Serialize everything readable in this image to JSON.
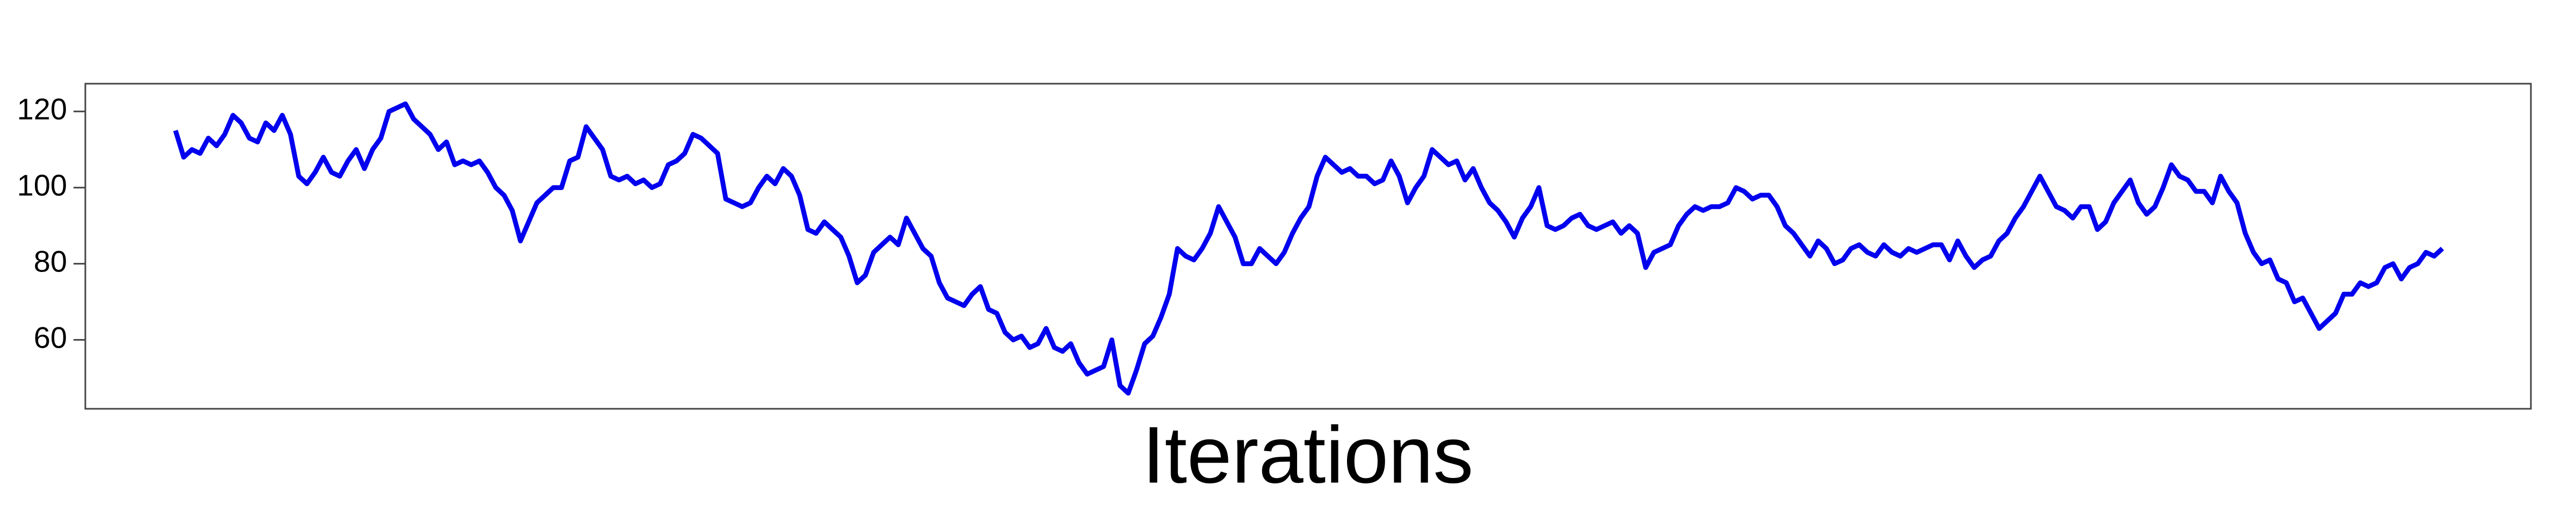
{
  "chart_data": {
    "type": "line",
    "x_label": "Iterations",
    "color": "#0000ee",
    "ylim": [
      41.9,
      127.3
    ],
    "yticks": [
      60,
      80,
      100,
      120
    ],
    "values": [
      115,
      108,
      110,
      109,
      113,
      111,
      114,
      119,
      117,
      113,
      112,
      117,
      115,
      119,
      114,
      103,
      101,
      104,
      108,
      104,
      103,
      107,
      110,
      105,
      110,
      113,
      120,
      121,
      122,
      118,
      116,
      114,
      110,
      112,
      106,
      107,
      106,
      107,
      104,
      100,
      98,
      94,
      86,
      91,
      96,
      98,
      100,
      100,
      107,
      108,
      116,
      113,
      110,
      103,
      102,
      103,
      101,
      102,
      100,
      101,
      106,
      107,
      109,
      114,
      113,
      111,
      109,
      97,
      96,
      95,
      96,
      100,
      103,
      101,
      105,
      103,
      98,
      89,
      88,
      91,
      89,
      87,
      82,
      75,
      77,
      83,
      85,
      87,
      85,
      92,
      88,
      84,
      82,
      75,
      71,
      70,
      69,
      72,
      74,
      68,
      67,
      62,
      60,
      61,
      58,
      59,
      63,
      58,
      57,
      59,
      54,
      51,
      52,
      53,
      60,
      48,
      46,
      52,
      59,
      61,
      66,
      72,
      84,
      82,
      81,
      84,
      88,
      95,
      91,
      87,
      80,
      80,
      84,
      82,
      80,
      83,
      88,
      92,
      95,
      103,
      108,
      106,
      104,
      105,
      103,
      103,
      101,
      102,
      107,
      103,
      96,
      100,
      103,
      110,
      108,
      106,
      107,
      102,
      105,
      100,
      96,
      94,
      91,
      87,
      92,
      95,
      100,
      90,
      89,
      90,
      92,
      93,
      90,
      89,
      90,
      91,
      88,
      90,
      88,
      79,
      83,
      84,
      85,
      90,
      93,
      95,
      94,
      95,
      95,
      96,
      100,
      99,
      97,
      98,
      98,
      95,
      90,
      88,
      85,
      82,
      86,
      84,
      80,
      81,
      84,
      85,
      83,
      82,
      85,
      83,
      82,
      84,
      83,
      84,
      85,
      85,
      81,
      86,
      82,
      79,
      81,
      82,
      86,
      88,
      92,
      95,
      99,
      103,
      99,
      95,
      94,
      92,
      95,
      95,
      89,
      91,
      96,
      99,
      102,
      96,
      93,
      95,
      100,
      106,
      103,
      102,
      99,
      99,
      96,
      103,
      99,
      96,
      88,
      83,
      80,
      81,
      76,
      75,
      70,
      71,
      67,
      63,
      65,
      67,
      72,
      72,
      75,
      74,
      75,
      79,
      80,
      76,
      79,
      80,
      83,
      82,
      84
    ]
  }
}
